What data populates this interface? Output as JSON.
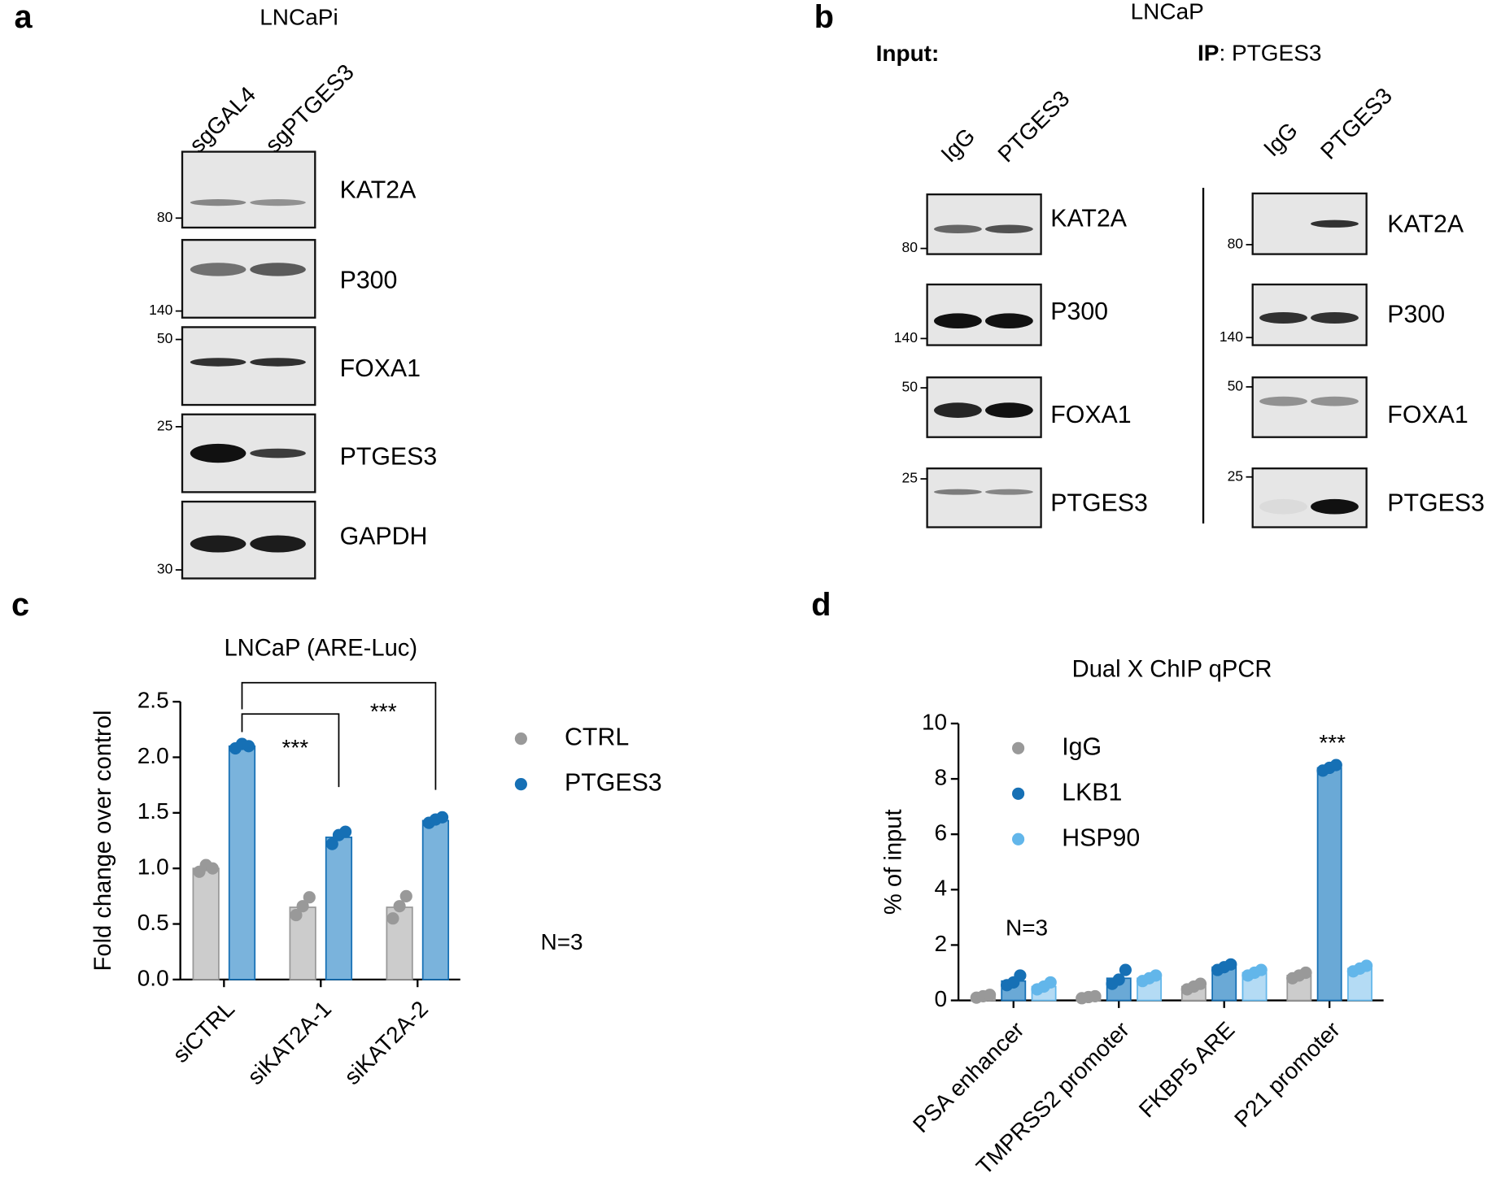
{
  "panels": [
    {
      "label": "a",
      "title": "LNCaPi",
      "sections": [
        {
          "lanes": [
            "sgGAL4",
            "sgPTGES3"
          ],
          "blots": [
            {
              "name": "KAT2A",
              "marker": 80
            },
            {
              "name": "P300",
              "marker": 140
            },
            {
              "name": "FOXA1",
              "marker": 50
            },
            {
              "name": "PTGES3",
              "marker": 25
            },
            {
              "name": "GAPDH",
              "marker": 30
            }
          ]
        }
      ]
    },
    {
      "label": "b",
      "title": "LNCaP",
      "sections": [
        {
          "heading": "Input:",
          "lanes": [
            "IgG",
            "PTGES3"
          ],
          "blots": [
            {
              "name": "KAT2A",
              "marker": 80
            },
            {
              "name": "P300",
              "marker": 140
            },
            {
              "name": "FOXA1",
              "marker": 50
            },
            {
              "name": "PTGES3",
              "marker": 25
            }
          ]
        },
        {
          "heading": "IP",
          "heading_rest": ": PTGES3",
          "lanes": [
            "IgG",
            "PTGES3"
          ],
          "blots": [
            {
              "name": "KAT2A",
              "marker": 80
            },
            {
              "name": "P300",
              "marker": 140
            },
            {
              "name": "FOXA1",
              "marker": 50
            },
            {
              "name": "PTGES3",
              "marker": 25
            }
          ]
        }
      ]
    },
    {
      "label": "c"
    },
    {
      "label": "d"
    }
  ],
  "chart_data": [
    {
      "type": "bar",
      "title": "LNCaP (ARE-Luc)",
      "ylabel": "Fold change over control",
      "categories": [
        "siCTRL",
        "siKAT2A-1",
        "siKAT2A-2"
      ],
      "series": [
        {
          "name": "CTRL",
          "color": "#999999",
          "bar_color": "#cccccc",
          "values": [
            1.0,
            0.65,
            0.65
          ],
          "points": [
            [
              0.97,
              1.03,
              1.0
            ],
            [
              0.58,
              0.66,
              0.74
            ],
            [
              0.55,
              0.66,
              0.75
            ]
          ]
        },
        {
          "name": "PTGES3",
          "color": "#1670b5",
          "bar_color": "#7ab3dc",
          "values": [
            2.1,
            1.28,
            1.43
          ],
          "points": [
            [
              2.08,
              2.12,
              2.1
            ],
            [
              1.22,
              1.3,
              1.33
            ],
            [
              1.41,
              1.44,
              1.46
            ]
          ]
        }
      ],
      "ylim": [
        0,
        2.5
      ],
      "yticks": [
        {
          "value": 0,
          "label": "0.0"
        },
        0.5,
        {
          "value": 1,
          "label": "1.0"
        },
        1.5,
        {
          "value": 2,
          "label": "2.0"
        },
        2.5
      ],
      "annotations": [
        "***",
        "***",
        "N=3"
      ]
    },
    {
      "type": "bar",
      "title": "Dual X ChIP qPCR",
      "ylabel": "% of input",
      "categories": [
        "PSA enhancer",
        "TMPRSS2 promoter",
        "FKBP5 ARE",
        "P21 promoter"
      ],
      "series": [
        {
          "name": "IgG",
          "color": "#999999",
          "bar_color": "#cccccc",
          "values": [
            0.15,
            0.12,
            0.5,
            0.9
          ],
          "points": [
            [
              0.1,
              0.15,
              0.2
            ],
            [
              0.08,
              0.12,
              0.15
            ],
            [
              0.4,
              0.5,
              0.6
            ],
            [
              0.8,
              0.9,
              1.0
            ]
          ]
        },
        {
          "name": "LKB1",
          "color": "#1670b5",
          "bar_color": "#6aa9d6",
          "values": [
            0.7,
            0.8,
            1.2,
            8.4
          ],
          "points": [
            [
              0.55,
              0.65,
              0.9
            ],
            [
              0.6,
              0.75,
              1.1
            ],
            [
              1.1,
              1.2,
              1.3
            ],
            [
              8.3,
              8.4,
              8.5
            ]
          ]
        },
        {
          "name": "HSP90",
          "color": "#62b6ea",
          "bar_color": "#b4dbf4",
          "values": [
            0.5,
            0.8,
            1.0,
            1.15
          ],
          "points": [
            [
              0.4,
              0.5,
              0.65
            ],
            [
              0.7,
              0.8,
              0.9
            ],
            [
              0.9,
              1.0,
              1.1
            ],
            [
              1.05,
              1.15,
              1.25
            ]
          ]
        }
      ],
      "ylim": [
        0,
        10
      ],
      "yticks": [
        0,
        2,
        4,
        6,
        8,
        10
      ],
      "annotations": [
        "***",
        "N=3"
      ]
    }
  ]
}
